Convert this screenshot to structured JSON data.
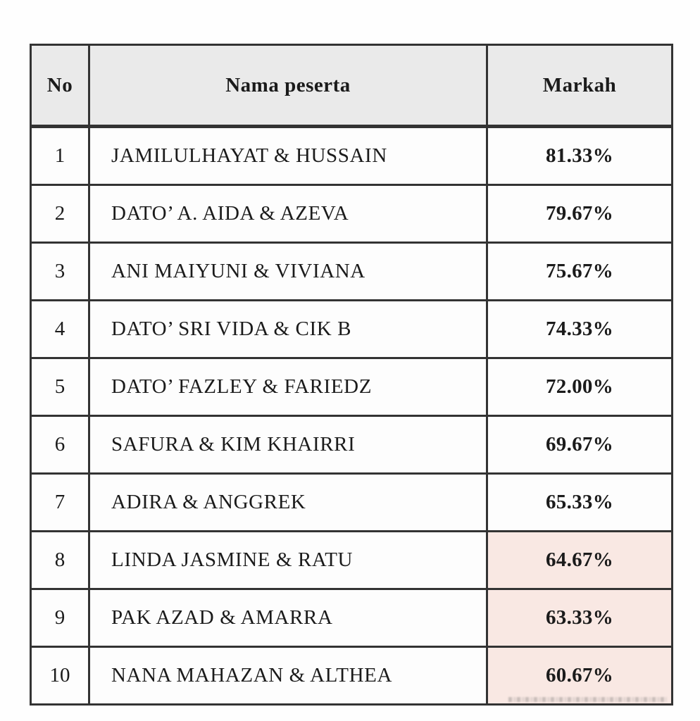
{
  "table": {
    "columns": [
      {
        "key": "no",
        "label": "No"
      },
      {
        "key": "name",
        "label": "Nama peserta"
      },
      {
        "key": "score",
        "label": "Markah"
      }
    ],
    "rows": [
      {
        "no": "1",
        "name": "JAMILULHAYAT & HUSSAIN",
        "score": "81.33%",
        "highlight": false
      },
      {
        "no": "2",
        "name": "DATO’ A. AIDA & AZEVA",
        "score": "79.67%",
        "highlight": false
      },
      {
        "no": "3",
        "name": "ANI MAIYUNI & VIVIANA",
        "score": "75.67%",
        "highlight": false
      },
      {
        "no": "4",
        "name": "DATO’ SRI VIDA & CIK B",
        "score": "74.33%",
        "highlight": false
      },
      {
        "no": "5",
        "name": "DATO’ FAZLEY & FARIEDZ",
        "score": "72.00%",
        "highlight": false
      },
      {
        "no": "6",
        "name": "SAFURA & KIM KHAIRRI",
        "score": "69.67%",
        "highlight": false
      },
      {
        "no": "7",
        "name": "ADIRA & ANGGREK",
        "score": "65.33%",
        "highlight": false
      },
      {
        "no": "8",
        "name": "LINDA JASMINE & RATU",
        "score": "64.67%",
        "highlight": true
      },
      {
        "no": "9",
        "name": "PAK AZAD & AMARRA",
        "score": "63.33%",
        "highlight": true
      },
      {
        "no": "10",
        "name": "NANA MAHAZAN & ALTHEA",
        "score": "60.67%",
        "highlight": true
      }
    ],
    "colors": {
      "header_bg": "#eaeaea",
      "row_bg": "#fdfdfd",
      "highlight_bg": "#f9e8e3",
      "border": "#333333",
      "text": "#1b1b1b"
    }
  }
}
